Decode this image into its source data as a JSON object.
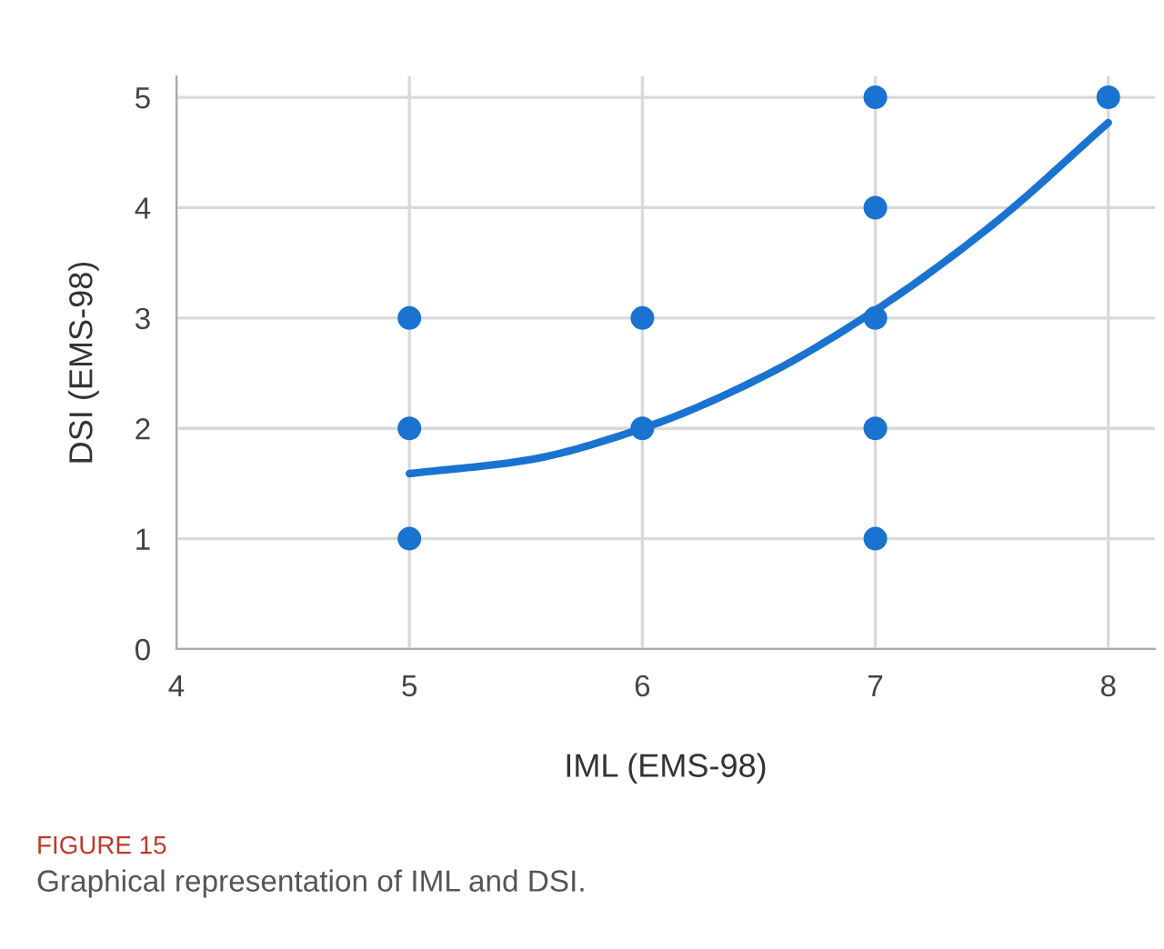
{
  "chart_data": {
    "type": "scatter",
    "xlabel": "IML (EMS-98)",
    "ylabel": "DSI (EMS-98)",
    "series": [
      {
        "color": "#1a73d0",
        "marker": "circle",
        "x": [
          5,
          5,
          5,
          6,
          6,
          7,
          7,
          7,
          7,
          7,
          8
        ],
        "values": [
          1,
          2,
          3,
          2,
          3,
          1,
          2,
          3,
          4,
          5,
          5
        ]
      },
      {
        "type": "line",
        "color": "#1a73d0",
        "x": [
          5,
          5.5,
          6,
          6.5,
          7,
          7.5,
          8
        ],
        "values": [
          1.59,
          1.71,
          2.0,
          2.45,
          3.07,
          3.84,
          4.77
        ]
      }
    ],
    "xlim": [
      4,
      8.2
    ],
    "xticks": [
      4,
      5,
      6,
      7,
      8
    ],
    "ylim": [
      0,
      5.19
    ],
    "yticks": [
      0,
      1,
      2,
      3,
      4,
      5
    ],
    "grid": true,
    "annotations": [
      "FIGURE 15",
      "Graphical representation of IML and DSI."
    ]
  }
}
